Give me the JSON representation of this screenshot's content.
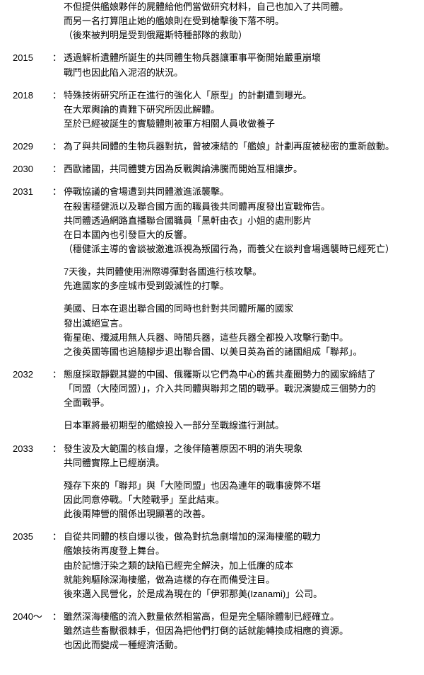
{
  "separator": "：",
  "events": [
    {
      "year": "",
      "paragraphs": [
        [
          "不但提供艦娘夥伴的屍體給他們當做研究材料，自己也加入了共同體。",
          "而另一名打算阻止她的艦娘則在受到槍擊後下落不明。",
          "（後來被判明是受到俄羅斯特種部隊的救助）"
        ]
      ]
    },
    {
      "year": "2015",
      "paragraphs": [
        [
          "透過解析遺體所誕生的共同體生物兵器讓軍事平衡開始嚴重崩壞",
          "戰鬥也因此陷入泥沼的狀況。"
        ]
      ]
    },
    {
      "year": "2018",
      "paragraphs": [
        [
          "特殊技術研究所正在進行的強化人「原型」的計劃遭到曝光。",
          "在大眾輿論的責難下研究所因此解體。",
          "至於已經被誕生的實驗體則被軍方相關人員收做養子"
        ]
      ]
    },
    {
      "year": "2029",
      "paragraphs": [
        [
          "為了與共同體的生物兵器對抗，曾被凍結的「艦娘」計劃再度被秘密的重新啟動。"
        ]
      ]
    },
    {
      "year": "2030",
      "paragraphs": [
        [
          "西歐諸國，共同體雙方因為反戰輿論沸騰而開始互相讓步。"
        ]
      ]
    },
    {
      "year": "2031",
      "paragraphs": [
        [
          "停戰協議的會場遭到共同體激進派襲擊。",
          "在殺害穩健派以及聯合國方面的職員後共同體再度發出宣戰佈告。",
          "共同體透過網路直播聯合國職員「黑軒由衣」小姐的處刑影片",
          "在日本國內也引發巨大的反響。",
          "（穩健派主導的會談被激進派視為叛國行為，而養父在談判會場遇襲時已經死亡）"
        ],
        [
          "7天後，共同體使用洲際導彈對各國進行核攻擊。",
          "先進國家的多座城市受到毀滅性的打擊。"
        ],
        [
          "美國、日本在退出聯合國的同時也針對共同體所屬的國家",
          "發出滅絕宣言。",
          "衛星砲、殲滅用無人兵器、時間兵器，這些兵器全都投入攻擊行動中。",
          "之後英國等國也追隨腳步退出聯合國、以美日英為首的諸國組成「聯邦」。"
        ]
      ]
    },
    {
      "year": "2032",
      "paragraphs": [
        [
          "態度採取靜觀其變的中國、俄羅斯以它們為中心的舊共產圈勢力的國家締結了",
          "「同盟（大陸同盟）」，介入共同體與聯邦之間的戰爭。戰況演變成三個勢力的",
          "全面戰爭。"
        ],
        [
          "日本軍將最初期型的艦娘投入一部分至戰線進行測試。"
        ]
      ]
    },
    {
      "year": "2033",
      "paragraphs": [
        [
          "發生波及大範圍的核自爆，之後伴隨著原因不明的消失現象",
          "共同體實際上已經崩潰。"
        ],
        [
          "殘存下來的「聯邦」與「大陸同盟」也因為連年的戰事疲弊不堪",
          "因此同意停戰。「大陸戰爭」至此結束。",
          "此後兩陣營的關係出現顯著的改善。"
        ]
      ]
    },
    {
      "year": "2035",
      "paragraphs": [
        [
          "自從共同體的核自爆以後，做為對抗急劇增加的深海棲艦的戰力",
          "艦娘技術再度登上舞台。",
          "由於記憶汙染之類的缺陷已經完全解決，加上低廉的成本",
          "就能夠驅除深海棲艦，做為這樣的存在而備受注目。",
          "後來邁入民營化，於是成為現在的「伊邪那美(Izanami)」公司。"
        ]
      ]
    },
    {
      "year": "2040～",
      "paragraphs": [
        [
          "雖然深海棲艦的流入數量依然相當高，但是完全驅除體制已經確立。",
          "雖然這些畜獸很棘手，但因為把他們打倒的話就能轉換成相應的資源。",
          "也因此而變成一種經濟活動。"
        ]
      ]
    }
  ]
}
